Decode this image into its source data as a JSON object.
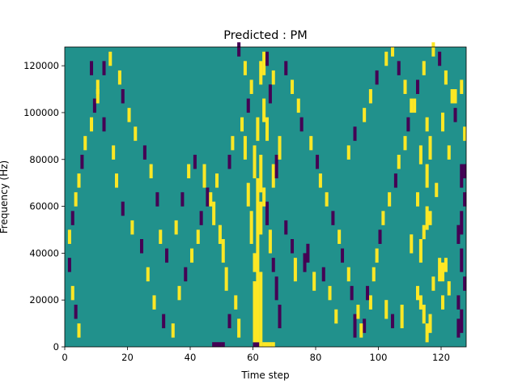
{
  "chart_data": {
    "type": "heatmap",
    "title": "Predicted : PM",
    "xlabel": "Time step",
    "ylabel": "Frequency (Hz)",
    "xlim": [
      0,
      128
    ],
    "ylim": [
      0,
      128000
    ],
    "x_ticks": [
      0,
      20,
      40,
      60,
      80,
      100,
      120
    ],
    "x_tick_labels": [
      "0",
      "20",
      "40",
      "60",
      "80",
      "100",
      "120"
    ],
    "y_ticks": [
      0,
      20000,
      40000,
      60000,
      80000,
      100000,
      120000
    ],
    "y_tick_labels": [
      "0",
      "20000",
      "40000",
      "60000",
      "80000",
      "100000",
      "120000"
    ],
    "frequency_bins": 64,
    "time_steps": 128,
    "colormap": {
      "background": "#21918c",
      "high": "#fde725",
      "low": "#440154"
    },
    "default_value": 0,
    "cells_note": "cells listed as [time_step, frequency_bin_start, frequency_bin_end, value]; value 1 = high (yellow), -1 = low (purple); unlisted cells = 0",
    "cells": [
      [
        47,
        0,
        0,
        -1
      ],
      [
        48,
        0,
        0,
        -1
      ],
      [
        49,
        0,
        0,
        -1
      ],
      [
        50,
        0,
        0,
        -1
      ],
      [
        60,
        0,
        0,
        -1
      ],
      [
        61,
        0,
        0,
        -1
      ],
      [
        62,
        0,
        0,
        1
      ],
      [
        63,
        0,
        0,
        1
      ],
      [
        64,
        0,
        0,
        1
      ],
      [
        65,
        0,
        0,
        1
      ],
      [
        66,
        0,
        0,
        1
      ],
      [
        60,
        1,
        13,
        1
      ],
      [
        61,
        1,
        15,
        1
      ],
      [
        62,
        1,
        15,
        1
      ],
      [
        60,
        16,
        19,
        1
      ],
      [
        61,
        16,
        21,
        1
      ],
      [
        59,
        22,
        28,
        1
      ],
      [
        61,
        22,
        35,
        1
      ],
      [
        62,
        24,
        30,
        1
      ],
      [
        58,
        30,
        34,
        1
      ],
      [
        62,
        33,
        40,
        1
      ],
      [
        60,
        36,
        42,
        1
      ],
      [
        57,
        40,
        44,
        1
      ],
      [
        61,
        44,
        48,
        1
      ],
      [
        115,
        1,
        4,
        1
      ],
      [
        116,
        3,
        6,
        1
      ],
      [
        114,
        5,
        8,
        1
      ],
      [
        113,
        8,
        10,
        1
      ],
      [
        112,
        10,
        12,
        1
      ],
      [
        125,
        2,
        5,
        -1
      ],
      [
        126,
        3,
        7,
        -1
      ],
      [
        125,
        8,
        10,
        -1
      ],
      [
        127,
        12,
        14,
        -1
      ],
      [
        126,
        16,
        20,
        -1
      ],
      [
        120,
        8,
        10,
        1
      ],
      [
        122,
        11,
        13,
        1
      ],
      [
        119,
        14,
        18,
        1
      ],
      [
        120,
        14,
        17,
        1
      ],
      [
        121,
        16,
        18,
        1
      ],
      [
        113,
        18,
        22,
        1
      ],
      [
        114,
        23,
        25,
        1
      ],
      [
        116,
        26,
        28,
        1
      ],
      [
        125,
        22,
        25,
        -1
      ],
      [
        126,
        24,
        28,
        -1
      ],
      [
        127,
        30,
        32,
        -1
      ],
      [
        117,
        12,
        14,
        1
      ],
      [
        112,
        30,
        32,
        1
      ],
      [
        118,
        32,
        34,
        1
      ],
      [
        115,
        25,
        29,
        1
      ],
      [
        110,
        20,
        23,
        1
      ],
      [
        122,
        40,
        42,
        1
      ],
      [
        113,
        39,
        42,
        1
      ],
      [
        115,
        34,
        38,
        1
      ],
      [
        116,
        40,
        44,
        1
      ],
      [
        115,
        46,
        48,
        1
      ],
      [
        126,
        34,
        38,
        -1
      ],
      [
        127,
        36,
        38,
        -1
      ],
      [
        120,
        46,
        49,
        1
      ],
      [
        124,
        52,
        54,
        1
      ],
      [
        126,
        54,
        56,
        1
      ],
      [
        107,
        4,
        8,
        1
      ],
      [
        102,
        6,
        9,
        1
      ],
      [
        104,
        4,
        6,
        -1
      ],
      [
        97,
        8,
        10,
        1
      ],
      [
        95,
        3,
        5,
        -1
      ],
      [
        92,
        2,
        6,
        -1
      ],
      [
        86,
        5,
        7,
        1
      ],
      [
        84,
        10,
        12,
        1
      ],
      [
        82,
        14,
        16,
        -1
      ],
      [
        79,
        12,
        15,
        1
      ],
      [
        76,
        16,
        19,
        -1
      ],
      [
        77,
        18,
        21,
        -1
      ],
      [
        73,
        14,
        18,
        1
      ],
      [
        72,
        20,
        22,
        -1
      ],
      [
        70,
        24,
        26,
        -1
      ],
      [
        68,
        4,
        8,
        -1
      ],
      [
        67,
        10,
        14,
        -1
      ],
      [
        66,
        16,
        18,
        -1
      ],
      [
        65,
        20,
        24,
        1
      ],
      [
        64,
        26,
        30,
        -1
      ],
      [
        63,
        30,
        33,
        1
      ],
      [
        66,
        34,
        38,
        1
      ],
      [
        67,
        36,
        40,
        -1
      ],
      [
        68,
        40,
        44,
        1
      ],
      [
        64,
        44,
        48,
        1
      ],
      [
        63,
        48,
        52,
        1
      ],
      [
        65,
        52,
        55,
        -1
      ],
      [
        66,
        56,
        58,
        1
      ],
      [
        62,
        56,
        60,
        1
      ],
      [
        63,
        58,
        62,
        1
      ],
      [
        64,
        60,
        62,
        -1
      ],
      [
        55,
        2,
        5,
        1
      ],
      [
        54,
        8,
        10,
        1
      ],
      [
        52,
        4,
        6,
        -1
      ],
      [
        51,
        12,
        16,
        1
      ],
      [
        50,
        18,
        22,
        1
      ],
      [
        49,
        22,
        25,
        1
      ],
      [
        47,
        26,
        30,
        1
      ],
      [
        45,
        30,
        33,
        -1
      ],
      [
        44,
        34,
        38,
        1
      ],
      [
        41,
        38,
        40,
        -1
      ],
      [
        39,
        36,
        38,
        1
      ],
      [
        37,
        30,
        32,
        -1
      ],
      [
        35,
        24,
        26,
        1
      ],
      [
        32,
        18,
        20,
        -1
      ],
      [
        30,
        22,
        24,
        1
      ],
      [
        29,
        30,
        32,
        -1
      ],
      [
        27,
        36,
        38,
        1
      ],
      [
        25,
        40,
        42,
        -1
      ],
      [
        22,
        44,
        46,
        1
      ],
      [
        20,
        48,
        50,
        1
      ],
      [
        18,
        52,
        54,
        -1
      ],
      [
        17,
        56,
        58,
        1
      ],
      [
        14,
        60,
        62,
        1
      ],
      [
        12,
        58,
        60,
        -1
      ],
      [
        10,
        54,
        56,
        1
      ],
      [
        9,
        50,
        52,
        -1
      ],
      [
        8,
        46,
        48,
        1
      ],
      [
        6,
        42,
        44,
        1
      ],
      [
        5,
        38,
        40,
        -1
      ],
      [
        4,
        34,
        36,
        1
      ],
      [
        3,
        30,
        32,
        1
      ],
      [
        2,
        26,
        28,
        -1
      ],
      [
        1,
        22,
        24,
        1
      ],
      [
        1,
        16,
        18,
        -1
      ],
      [
        2,
        10,
        12,
        1
      ],
      [
        3,
        6,
        8,
        -1
      ],
      [
        4,
        2,
        4,
        1
      ],
      [
        8,
        58,
        60,
        -1
      ],
      [
        10,
        52,
        54,
        1
      ],
      [
        12,
        46,
        48,
        -1
      ],
      [
        15,
        40,
        42,
        1
      ],
      [
        16,
        34,
        36,
        1
      ],
      [
        18,
        28,
        30,
        -1
      ],
      [
        21,
        24,
        26,
        1
      ],
      [
        24,
        20,
        22,
        -1
      ],
      [
        26,
        14,
        16,
        1
      ],
      [
        28,
        8,
        10,
        1
      ],
      [
        31,
        4,
        6,
        -1
      ],
      [
        34,
        2,
        4,
        1
      ],
      [
        36,
        10,
        12,
        1
      ],
      [
        38,
        14,
        16,
        -1
      ],
      [
        40,
        18,
        20,
        1
      ],
      [
        42,
        22,
        24,
        1
      ],
      [
        43,
        26,
        28,
        -1
      ],
      [
        46,
        30,
        32,
        1
      ],
      [
        48,
        34,
        36,
        1
      ],
      [
        52,
        38,
        40,
        -1
      ],
      [
        53,
        42,
        44,
        1
      ],
      [
        56,
        46,
        48,
        1
      ],
      [
        58,
        50,
        52,
        -1
      ],
      [
        59,
        54,
        56,
        1
      ],
      [
        57,
        58,
        60,
        1
      ],
      [
        55,
        62,
        64,
        -1
      ],
      [
        70,
        58,
        60,
        -1
      ],
      [
        72,
        54,
        56,
        1
      ],
      [
        74,
        50,
        52,
        1
      ],
      [
        75,
        46,
        48,
        -1
      ],
      [
        78,
        42,
        44,
        1
      ],
      [
        80,
        38,
        40,
        -1
      ],
      [
        81,
        34,
        36,
        1
      ],
      [
        83,
        30,
        32,
        1
      ],
      [
        85,
        26,
        28,
        -1
      ],
      [
        87,
        22,
        24,
        1
      ],
      [
        88,
        18,
        20,
        -1
      ],
      [
        90,
        14,
        16,
        1
      ],
      [
        91,
        10,
        12,
        -1
      ],
      [
        93,
        6,
        8,
        1
      ],
      [
        94,
        2,
        4,
        1
      ],
      [
        96,
        10,
        12,
        -1
      ],
      [
        98,
        14,
        16,
        1
      ],
      [
        99,
        18,
        20,
        1
      ],
      [
        100,
        22,
        24,
        -1
      ],
      [
        101,
        26,
        28,
        1
      ],
      [
        103,
        30,
        32,
        1
      ],
      [
        105,
        34,
        36,
        -1
      ],
      [
        106,
        38,
        40,
        1
      ],
      [
        108,
        42,
        44,
        1
      ],
      [
        109,
        46,
        48,
        -1
      ],
      [
        111,
        50,
        52,
        1
      ],
      [
        112,
        54,
        56,
        -1
      ],
      [
        114,
        58,
        60,
        1
      ],
      [
        117,
        62,
        64,
        1
      ],
      [
        119,
        60,
        62,
        -1
      ],
      [
        121,
        56,
        58,
        1
      ],
      [
        123,
        52,
        54,
        1
      ],
      [
        124,
        48,
        50,
        -1
      ],
      [
        127,
        44,
        46,
        1
      ],
      [
        90,
        40,
        42,
        1
      ],
      [
        92,
        44,
        46,
        -1
      ],
      [
        95,
        48,
        50,
        1
      ],
      [
        97,
        52,
        54,
        1
      ],
      [
        99,
        56,
        58,
        -1
      ],
      [
        102,
        60,
        62,
        1
      ],
      [
        104,
        62,
        63,
        1
      ],
      [
        106,
        58,
        60,
        -1
      ],
      [
        108,
        54,
        56,
        1
      ],
      [
        110,
        50,
        52,
        1
      ]
    ]
  }
}
